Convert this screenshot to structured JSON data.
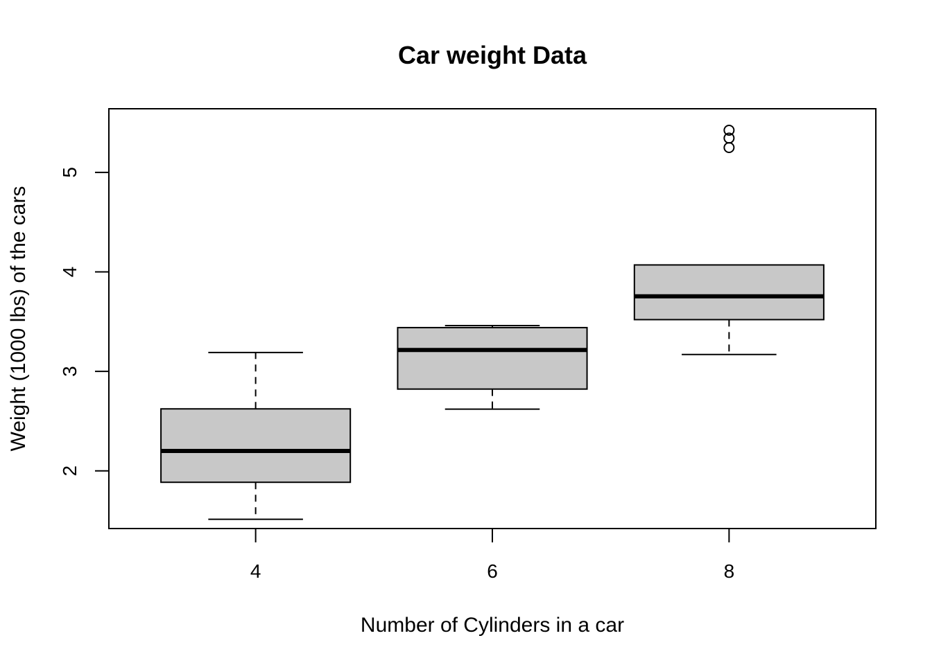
{
  "chart_data": {
    "type": "boxplot",
    "title": "Car weight Data",
    "xlabel": "Number of Cylinders in a car",
    "ylabel": "Weight (1000 lbs) of the cars",
    "categories": [
      "4",
      "6",
      "8"
    ],
    "boxes": [
      {
        "category": "4",
        "whisker_low": 1.513,
        "q1": 1.885,
        "median": 2.2,
        "q3": 2.623,
        "whisker_high": 3.19,
        "outliers": []
      },
      {
        "category": "6",
        "whisker_low": 2.62,
        "q1": 2.822,
        "median": 3.215,
        "q3": 3.44,
        "whisker_high": 3.46,
        "outliers": []
      },
      {
        "category": "8",
        "whisker_low": 3.17,
        "q1": 3.52,
        "median": 3.755,
        "q3": 4.07,
        "whisker_high": 4.07,
        "outliers": [
          5.25,
          5.345,
          5.424
        ]
      }
    ],
    "yticks": [
      2,
      3,
      4,
      5
    ],
    "ylim": [
      1.42,
      5.64
    ],
    "grid": false,
    "box_fill": "#c8c8c8",
    "line_color": "#000000"
  }
}
